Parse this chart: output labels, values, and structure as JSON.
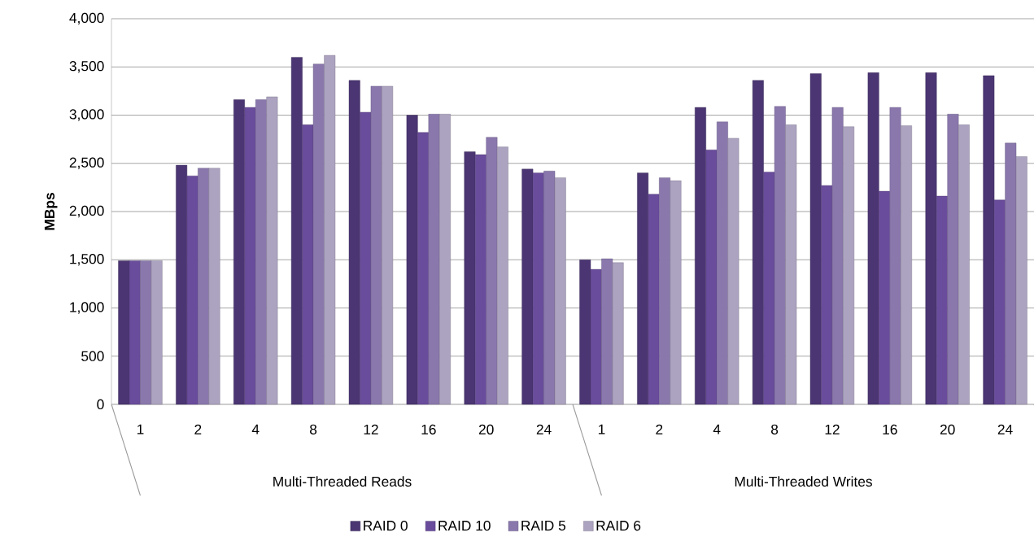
{
  "chart_data": {
    "type": "bar",
    "ylabel": "**MBps**",
    "categories": [
      "1",
      "2",
      "4",
      "8",
      "12",
      "16",
      "20",
      "24",
      "1",
      "2",
      "4",
      "8",
      "12",
      "16",
      "20",
      "24"
    ],
    "annotations": [
      "Multi-Threaded Reads",
      "Multi-Threaded Writes"
    ],
    "series": [
      {
        "name": "RAID 0",
        "color": "#4b3673",
        "values": [
          1490,
          2480,
          3160,
          3600,
          3360,
          3000,
          2620,
          2440,
          1500,
          2400,
          3080,
          3360,
          3430,
          3440,
          3440,
          3410
        ]
      },
      {
        "name": "RAID 10",
        "color": "#6a4c9c",
        "values": [
          1490,
          2370,
          3080,
          2900,
          3030,
          2820,
          2590,
          2400,
          1400,
          2180,
          2640,
          2410,
          2270,
          2210,
          2160,
          2120
        ]
      },
      {
        "name": "RAID 5",
        "color": "#8a78ad",
        "values": [
          1490,
          2450,
          3160,
          3530,
          3300,
          3010,
          2770,
          2420,
          1510,
          2350,
          2930,
          3090,
          3080,
          3080,
          3010,
          2710
        ]
      },
      {
        "name": "RAID 6",
        "color": "#aca3c0",
        "values": [
          1490,
          2450,
          3190,
          3620,
          3300,
          3010,
          2670,
          2350,
          1470,
          2320,
          2760,
          2900,
          2880,
          2890,
          2900,
          2570
        ]
      }
    ],
    "ylim": [
      0,
      4000
    ],
    "yticks": [
      0,
      500,
      {
        "value": 1000,
        "label": "1,000"
      },
      {
        "value": 1500,
        "label": "1,500"
      },
      {
        "value": 2000,
        "label": "2,000"
      },
      {
        "value": 2500,
        "label": "2,500"
      },
      {
        "value": 3000,
        "label": "3,000"
      },
      {
        "value": 3500,
        "label": "3,500"
      },
      {
        "value": 4000,
        "label": "4,000"
      }
    ],
    "grid": "y",
    "legend": "bottom"
  }
}
